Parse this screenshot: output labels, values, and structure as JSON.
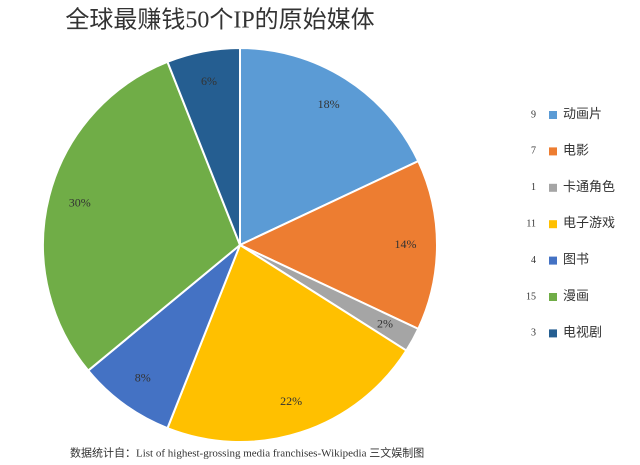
{
  "chart_data": {
    "type": "pie",
    "title": "全球最赚钱50个IP的原始媒体",
    "categories": [
      "动画片",
      "电影",
      "卡通角色",
      "电子游戏",
      "图书",
      "漫画",
      "电视剧"
    ],
    "counts": [
      9,
      7,
      1,
      11,
      4,
      15,
      3
    ],
    "values": [
      18,
      14,
      2,
      22,
      8,
      30,
      6
    ],
    "value_labels": [
      "18%",
      "14%",
      "2%",
      "22%",
      "8%",
      "30%",
      "6%"
    ],
    "colors": [
      "#5b9bd5",
      "#ed7d31",
      "#a5a5a5",
      "#ffc000",
      "#4472c4",
      "#70ad47",
      "#255e91"
    ],
    "source": "数据统计自：List of highest-grossing media franchises-Wikipedia  三文娱制图"
  }
}
